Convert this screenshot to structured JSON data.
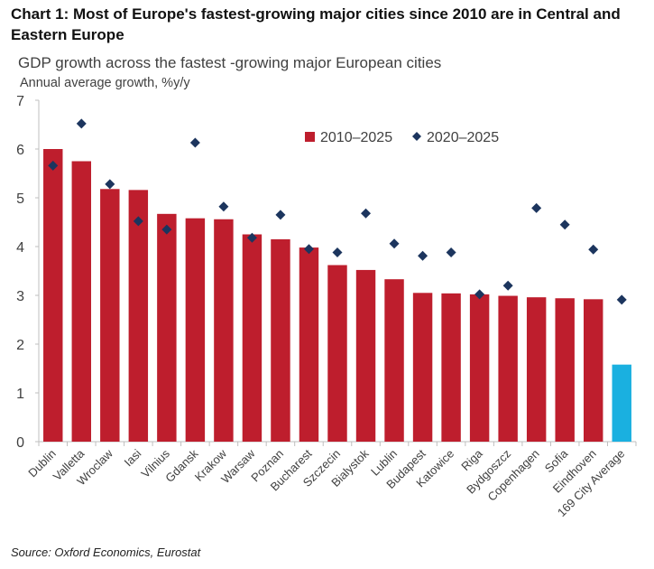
{
  "header": {
    "title": "Chart 1: Most of Europe's fastest-growing major cities since 2010 are in Central and Eastern Europe",
    "subtitle": "GDP growth across the fastest -growing major European cities",
    "ylabel": "Annual average growth, %y/y"
  },
  "footer": {
    "source": "Source: Oxford Economics, Eurostat"
  },
  "colors": {
    "bar": "#be1e2d",
    "bar_highlight": "#1ab0e0",
    "marker": "#1c355e",
    "axis": "#bfbfbf"
  },
  "chart_data": {
    "type": "bar",
    "categories": [
      "Dublin",
      "Valletta",
      "Wroclaw",
      "Iasi",
      "Vilnius",
      "Gdansk",
      "Krakow",
      "Warsaw",
      "Poznan",
      "Bucharest",
      "Szczecin",
      "Bialystok",
      "Lublin",
      "Budapest",
      "Katowice",
      "Riga",
      "Bydgoszcz",
      "Copenhagen",
      "Sofia",
      "Eindhoven",
      "169 City Average"
    ],
    "series": [
      {
        "name": "2010–2025",
        "kind": "bar",
        "values": [
          6.0,
          5.75,
          5.18,
          5.16,
          4.67,
          4.58,
          4.56,
          4.25,
          4.15,
          3.98,
          3.62,
          3.52,
          3.33,
          3.05,
          3.04,
          3.02,
          2.99,
          2.96,
          2.94,
          2.92,
          1.58
        ]
      },
      {
        "name": "2020–2025",
        "kind": "marker",
        "values": [
          5.66,
          6.52,
          5.28,
          4.52,
          4.35,
          6.13,
          4.82,
          4.18,
          4.65,
          3.95,
          3.88,
          4.68,
          4.06,
          3.81,
          3.88,
          3.02,
          3.2,
          4.79,
          4.45,
          3.94,
          2.91
        ]
      }
    ],
    "highlight_category": "169 City Average",
    "yticks": [
      0,
      1,
      2,
      3,
      4,
      5,
      6,
      7
    ],
    "ylim": [
      0,
      7
    ],
    "legend_position": "top-right",
    "grid": false
  }
}
